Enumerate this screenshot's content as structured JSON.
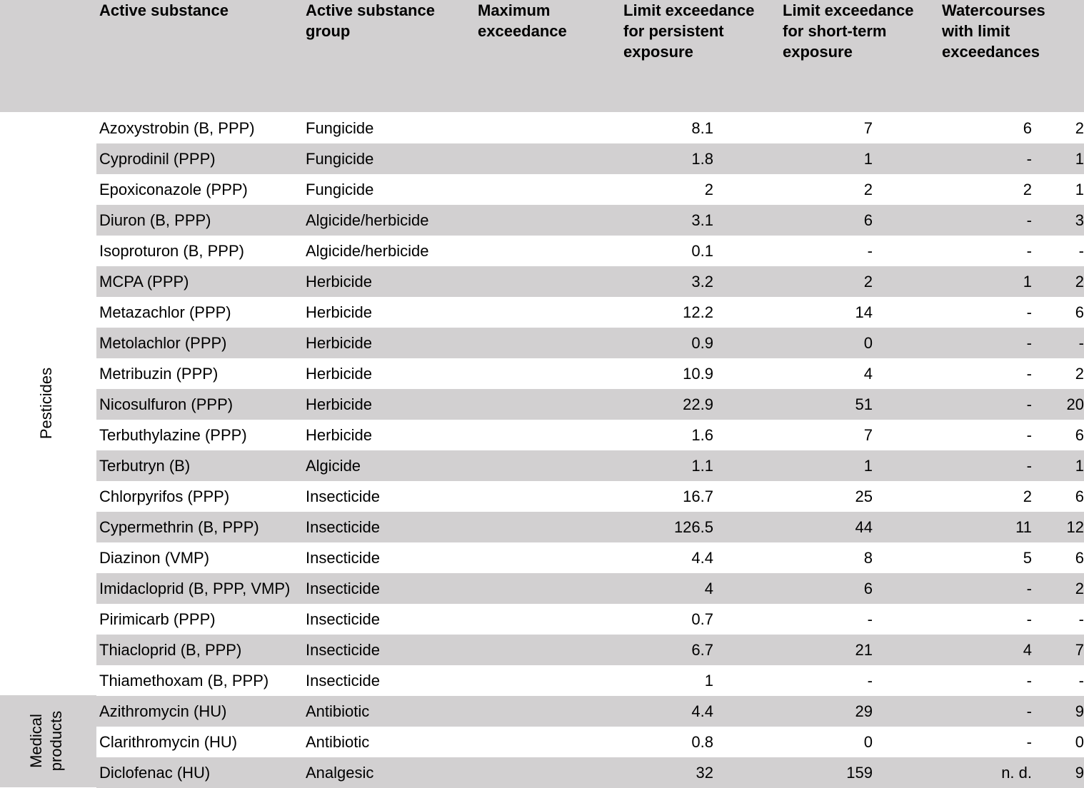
{
  "headers": [
    "Active substance",
    "Active substance\ngroup",
    "Maximum\nexceedance",
    "Limit exceedance\nfor persistent\nexposure",
    "Limit exceedance\nfor short-term\nexposure",
    "Watercourses\nwith limit\nexceedances"
  ],
  "categories": {
    "pesticides": "Pesticides",
    "medical": "Medical\nproducts"
  },
  "rows": [
    {
      "substance": "Azoxystrobin (B, PPP)",
      "group": "Fungicide",
      "max": "8.1",
      "persistent": "7",
      "short_term": "6",
      "watercourses": "2"
    },
    {
      "substance": "Cyprodinil (PPP)",
      "group": "Fungicide",
      "max": "1.8",
      "persistent": "1",
      "short_term": "-",
      "watercourses": "1"
    },
    {
      "substance": "Epoxiconazole (PPP)",
      "group": "Fungicide",
      "max": "2",
      "persistent": "2",
      "short_term": "2",
      "watercourses": "1"
    },
    {
      "substance": "Diuron (B, PPP)",
      "group": "Algicide/herbicide",
      "max": "3.1",
      "persistent": "6",
      "short_term": "-",
      "watercourses": "3"
    },
    {
      "substance": "Isoproturon (B, PPP)",
      "group": "Algicide/herbicide",
      "max": "0.1",
      "persistent": "-",
      "short_term": "-",
      "watercourses": "-"
    },
    {
      "substance": "MCPA (PPP)",
      "group": "Herbicide",
      "max": "3.2",
      "persistent": "2",
      "short_term": "1",
      "watercourses": "2"
    },
    {
      "substance": "Metazachlor (PPP)",
      "group": "Herbicide",
      "max": "12.2",
      "persistent": "14",
      "short_term": "-",
      "watercourses": "6"
    },
    {
      "substance": "Metolachlor (PPP)",
      "group": "Herbicide",
      "max": "0.9",
      "persistent": "0",
      "short_term": "-",
      "watercourses": "-"
    },
    {
      "substance": "Metribuzin (PPP)",
      "group": "Herbicide",
      "max": "10.9",
      "persistent": "4",
      "short_term": "-",
      "watercourses": "2"
    },
    {
      "substance": "Nicosulfuron (PPP)",
      "group": "Herbicide",
      "max": "22.9",
      "persistent": "51",
      "short_term": "-",
      "watercourses": "20"
    },
    {
      "substance": "Terbuthylazine (PPP)",
      "group": "Herbicide",
      "max": "1.6",
      "persistent": "7",
      "short_term": "-",
      "watercourses": "6"
    },
    {
      "substance": "Terbutryn (B)",
      "group": "Algicide",
      "max": "1.1",
      "persistent": "1",
      "short_term": "-",
      "watercourses": "1"
    },
    {
      "substance": "Chlorpyrifos (PPP)",
      "group": "Insecticide",
      "max": "16.7",
      "persistent": "25",
      "short_term": "2",
      "watercourses": "6"
    },
    {
      "substance": "Cypermethrin (B, PPP)",
      "group": "Insecticide",
      "max": "126.5",
      "persistent": "44",
      "short_term": "11",
      "watercourses": "12"
    },
    {
      "substance": "Diazinon (VMP)",
      "group": "Insecticide",
      "max": "4.4",
      "persistent": "8",
      "short_term": "5",
      "watercourses": "6"
    },
    {
      "substance": "Imidacloprid (B, PPP, VMP)",
      "group": "Insecticide",
      "max": "4",
      "persistent": "6",
      "short_term": "-",
      "watercourses": "2"
    },
    {
      "substance": "Pirimicarb (PPP)",
      "group": "Insecticide",
      "max": "0.7",
      "persistent": "-",
      "short_term": "-",
      "watercourses": "-"
    },
    {
      "substance": "Thiacloprid (B, PPP)",
      "group": "Insecticide",
      "max": "6.7",
      "persistent": "21",
      "short_term": "4",
      "watercourses": "7"
    },
    {
      "substance": "Thiamethoxam (B, PPP)",
      "group": "Insecticide",
      "max": "1",
      "persistent": "-",
      "short_term": "-",
      "watercourses": "-"
    },
    {
      "substance": "Azithromycin (HU)",
      "group": "Antibiotic",
      "max": "4.4",
      "persistent": "29",
      "short_term": "-",
      "watercourses": "9"
    },
    {
      "substance": "Clarithromycin (HU)",
      "group": "Antibiotic",
      "max": "0.8",
      "persistent": "0",
      "short_term": "-",
      "watercourses": "0"
    },
    {
      "substance": "Diclofenac (HU)",
      "group": "Analgesic",
      "max": "32",
      "persistent": "159",
      "short_term": "n. d.",
      "watercourses": "9"
    }
  ]
}
